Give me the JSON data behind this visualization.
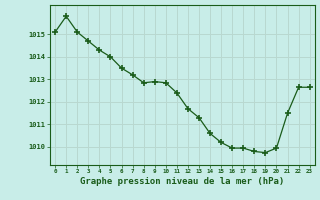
{
  "x": [
    0,
    1,
    2,
    3,
    4,
    5,
    6,
    7,
    8,
    9,
    10,
    11,
    12,
    13,
    14,
    15,
    16,
    17,
    18,
    19,
    20,
    21,
    22,
    23
  ],
  "y": [
    1015.1,
    1015.8,
    1015.1,
    1014.7,
    1014.3,
    1014.0,
    1013.5,
    1013.2,
    1012.85,
    1012.9,
    1012.85,
    1012.4,
    1011.7,
    1011.3,
    1010.6,
    1010.2,
    1009.95,
    1009.95,
    1009.8,
    1009.75,
    1009.95,
    1011.5,
    1012.65,
    1012.65
  ],
  "line_color": "#1a5c1a",
  "marker": "P",
  "marker_size": 3.5,
  "bg_color": "#c8ede8",
  "grid_color": "#b8d8d0",
  "tick_color": "#1a5c1a",
  "label_color": "#1a5c1a",
  "xlabel": "Graphe pression niveau de la mer (hPa)",
  "xlabel_fontsize": 6.5,
  "ylabel_ticks": [
    1010,
    1011,
    1012,
    1013,
    1014,
    1015
  ],
  "ylim": [
    1009.2,
    1016.3
  ],
  "xlim": [
    -0.5,
    23.5
  ],
  "xtick_labels": [
    "0",
    "1",
    "2",
    "3",
    "4",
    "5",
    "6",
    "7",
    "8",
    "9",
    "10",
    "11",
    "12",
    "13",
    "14",
    "15",
    "16",
    "17",
    "18",
    "19",
    "20",
    "21",
    "22",
    "23"
  ]
}
